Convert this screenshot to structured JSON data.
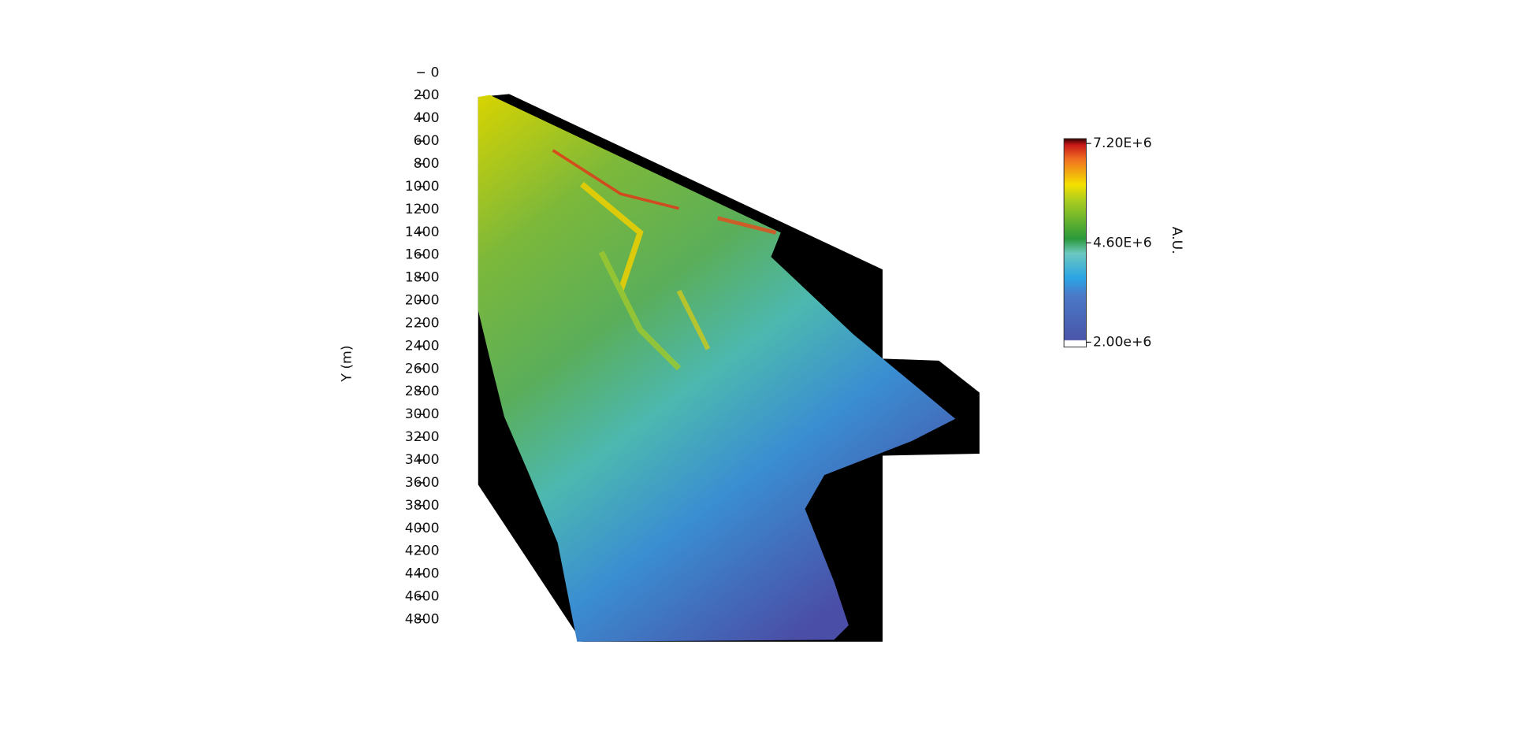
{
  "chart_data": {
    "type": "raster",
    "ylabel": "Y (m)",
    "ylim": [
      0,
      4800
    ],
    "yticks": [
      0,
      200,
      400,
      600,
      800,
      1000,
      1200,
      1400,
      1600,
      1800,
      2000,
      2200,
      2400,
      2600,
      2800,
      3000,
      3200,
      3400,
      3600,
      3800,
      4000,
      4200,
      4400,
      4600,
      4800
    ],
    "colorbar": {
      "label": "A.U.",
      "lim": [
        2000000,
        7200000
      ],
      "ticks": [
        {
          "value": 2000000,
          "label": "2.00e+6"
        },
        {
          "value": 4600000,
          "label": "4.60E+6"
        },
        {
          "value": 7200000,
          "label": "7.20E+6"
        }
      ]
    }
  }
}
